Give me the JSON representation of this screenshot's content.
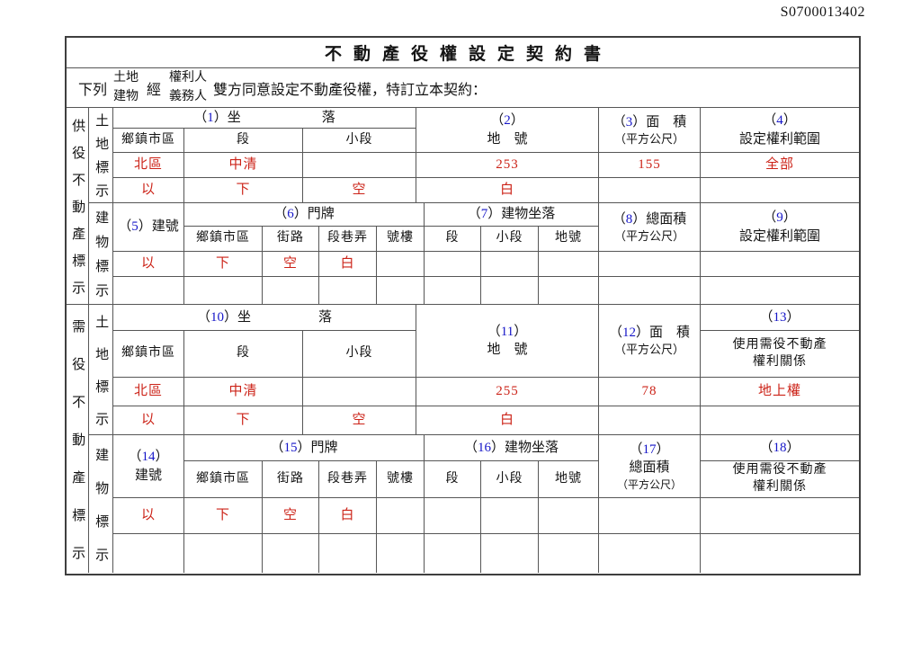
{
  "doc_number": "S0700013402",
  "sym": {
    "po": "（",
    "pc": "）"
  },
  "title": "不動產役權設定契約書",
  "intro": {
    "p1": "下列",
    "pair1a": "土地",
    "pair1b": "建物",
    "p2": "經",
    "pair2a": "權利人",
    "pair2b": "義務人",
    "p3": "雙方同意設定不動產役權，特訂立本契約："
  },
  "s1": {
    "side": "供役不動產標示",
    "land": {
      "side": "土地標示",
      "sit": {
        "no": "1",
        "label": "坐　　　　　　落"
      },
      "cols": [
        "鄉鎮市區",
        "段",
        "小段"
      ],
      "no2": {
        "no": "2",
        "label": "地　號"
      },
      "no3": {
        "no": "3",
        "label": "面　積",
        "sub": "（平方公尺）"
      },
      "no4": {
        "no": "4",
        "label": "設定權利範圍"
      },
      "r1": [
        "北區",
        "中清",
        "",
        "253",
        "155",
        "全部"
      ],
      "r2": [
        "以",
        "下",
        "空",
        "白",
        "",
        ""
      ]
    },
    "bld": {
      "side": "建物標示",
      "no5": {
        "no": "5",
        "label": "建號"
      },
      "no6": {
        "no": "6",
        "label": "門牌"
      },
      "no7": {
        "no": "7",
        "label": "建物坐落"
      },
      "cols6": [
        "鄉鎮市區",
        "街路",
        "段巷弄",
        "號樓"
      ],
      "cols7": [
        "段",
        "小段",
        "地號"
      ],
      "no8": {
        "no": "8",
        "label": "總面積",
        "sub": "（平方公尺）"
      },
      "no9": {
        "no": "9",
        "label": "設定權利範圍"
      },
      "r1": [
        "以",
        "下",
        "空",
        "白",
        "",
        "",
        "",
        "",
        "",
        ""
      ],
      "r2": [
        "",
        "",
        "",
        "",
        "",
        "",
        "",
        "",
        "",
        ""
      ]
    }
  },
  "s2": {
    "side": "需役不動產標示",
    "land": {
      "side": "土地標示",
      "sit": {
        "no": "10",
        "label": "坐　　　　　落"
      },
      "cols": [
        "鄉鎮市區",
        "段",
        "小段"
      ],
      "no11": {
        "no": "11",
        "label": "地　號"
      },
      "no12": {
        "no": "12",
        "label": "面　積",
        "sub": "（平方公尺）"
      },
      "no13": {
        "no": "13",
        "l1": "使用需役不動產",
        "l2": "權利關係"
      },
      "r1": [
        "北區",
        "中清",
        "",
        "255",
        "78",
        "地上權"
      ],
      "r2": [
        "以",
        "下",
        "空",
        "白",
        "",
        ""
      ]
    },
    "bld": {
      "side": "建物標示",
      "no14": {
        "no": "14",
        "label": "建號"
      },
      "no15": {
        "no": "15",
        "label": "門牌"
      },
      "no16": {
        "no": "16",
        "label": "建物坐落"
      },
      "cols6": [
        "鄉鎮市區",
        "街路",
        "段巷弄",
        "號樓"
      ],
      "cols7": [
        "段",
        "小段",
        "地號"
      ],
      "no17": {
        "no": "17",
        "label": "總面積",
        "sub": "（平方公尺）"
      },
      "no18": {
        "no": "18",
        "l1": "使用需役不動產",
        "l2": "權利關係"
      },
      "r1": [
        "以",
        "下",
        "空",
        "白",
        "",
        "",
        "",
        "",
        "",
        ""
      ],
      "r2": [
        "",
        "",
        "",
        "",
        "",
        "",
        "",
        "",
        "",
        ""
      ]
    }
  }
}
